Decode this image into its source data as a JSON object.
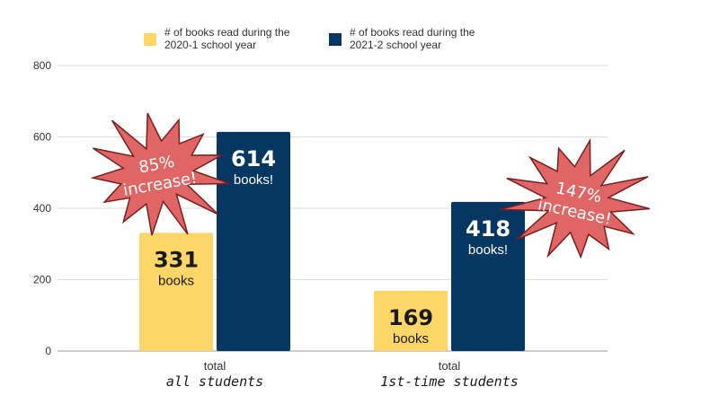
{
  "legend": [
    {
      "line1": "# of books read during the",
      "line2": "2020-1 school year",
      "color": "#FCD666"
    },
    {
      "line1": "# of books read during the",
      "line2": "2021-2 school year",
      "color": "#063763"
    }
  ],
  "chart_data": {
    "type": "bar",
    "categories": [
      {
        "top": "total",
        "bottom": "all students"
      },
      {
        "top": "total",
        "bottom": "1st-time students"
      }
    ],
    "series": [
      {
        "name": "# of books read during the 2020-1 school year",
        "values": [
          331,
          169
        ],
        "color": "#FCD666",
        "label_color": "#1a1a1a"
      },
      {
        "name": "# of books read during the 2021-2 school year",
        "values": [
          614,
          418
        ],
        "color": "#063763",
        "label_color": "#ffffff"
      }
    ],
    "bar_label_word": "books",
    "bar_label_word_series2": "books!",
    "yticks": [
      0,
      200,
      400,
      600,
      800
    ],
    "ylim": [
      0,
      800
    ],
    "grid": true,
    "annotations": [
      {
        "line1": "85%",
        "line2": "increase!",
        "color": "#E06666"
      },
      {
        "line1": "147%",
        "line2": "increase!",
        "color": "#E06666"
      }
    ]
  }
}
